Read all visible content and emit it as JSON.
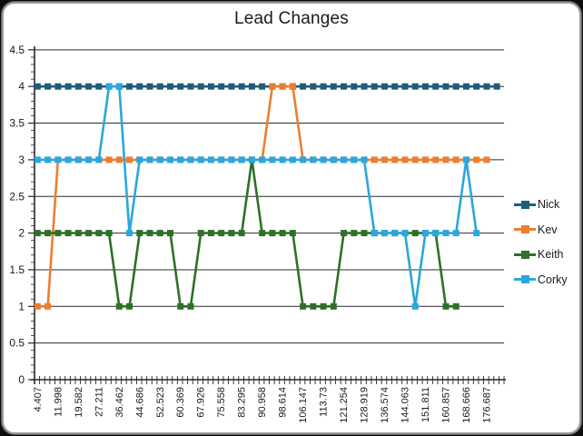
{
  "chart_data": {
    "type": "line",
    "title": "Lead Changes",
    "x_tick_labels": [
      "4.407",
      "11.998",
      "19.582",
      "27.211",
      "36.462",
      "44.686",
      "52.523",
      "60.369",
      "67.926",
      "75.558",
      "83.295",
      "90.958",
      "98.614",
      "106.147",
      "113.73",
      "121.254",
      "128.919",
      "136.574",
      "144.063",
      "151.811",
      "160.857",
      "168.666",
      "176.687"
    ],
    "x_label_interval": 2,
    "n_points": 46,
    "ylim": [
      0,
      4.5
    ],
    "y_ticks": [
      "4.5",
      "4",
      "3.5",
      "3",
      "2.5",
      "2",
      "1.5",
      "1",
      "0.5",
      "0"
    ],
    "grid": true,
    "legend_position": "right",
    "colors": {
      "grid": "#2b2b2b",
      "axis": "#262626",
      "text": "#1a1a1a",
      "frame_border": "#9a9a9a",
      "background": "#ffffff"
    },
    "series": [
      {
        "name": "Nick",
        "color": "#1F5C78",
        "values": [
          4,
          4,
          4,
          4,
          4,
          4,
          4,
          4,
          4,
          4,
          4,
          4,
          4,
          4,
          4,
          4,
          4,
          4,
          4,
          4,
          4,
          4,
          4,
          4,
          4,
          4,
          4,
          4,
          4,
          4,
          4,
          4,
          4,
          4,
          4,
          4,
          4,
          4,
          4,
          4,
          4,
          4,
          4,
          4,
          4,
          4
        ]
      },
      {
        "name": "Kev",
        "color": "#ED7D31",
        "values": [
          1,
          1,
          3,
          3,
          3,
          3,
          3,
          3,
          3,
          3,
          3,
          3,
          3,
          3,
          3,
          3,
          3,
          3,
          3,
          3,
          3,
          3,
          3,
          4,
          4,
          4,
          3,
          3,
          3,
          3,
          3,
          3,
          3,
          3,
          3,
          3,
          3,
          3,
          3,
          3,
          3,
          3,
          3,
          3,
          3
        ]
      },
      {
        "name": "Keith",
        "color": "#2E7028",
        "values": [
          2,
          2,
          2,
          2,
          2,
          2,
          2,
          2,
          1,
          1,
          2,
          2,
          2,
          2,
          1,
          1,
          2,
          2,
          2,
          2,
          2,
          3,
          2,
          2,
          2,
          2,
          1,
          1,
          1,
          1,
          2,
          2,
          2,
          2,
          2,
          2,
          2,
          2,
          2,
          2,
          1,
          1
        ]
      },
      {
        "name": "Corky",
        "color": "#2BA6DE",
        "values": [
          3,
          3,
          3,
          3,
          3,
          3,
          3,
          4,
          4,
          2,
          3,
          3,
          3,
          3,
          3,
          3,
          3,
          3,
          3,
          3,
          3,
          3,
          3,
          3,
          3,
          3,
          3,
          3,
          3,
          3,
          3,
          3,
          3,
          2,
          2,
          2,
          2,
          1,
          2,
          2,
          2,
          2,
          3,
          2
        ]
      }
    ]
  }
}
